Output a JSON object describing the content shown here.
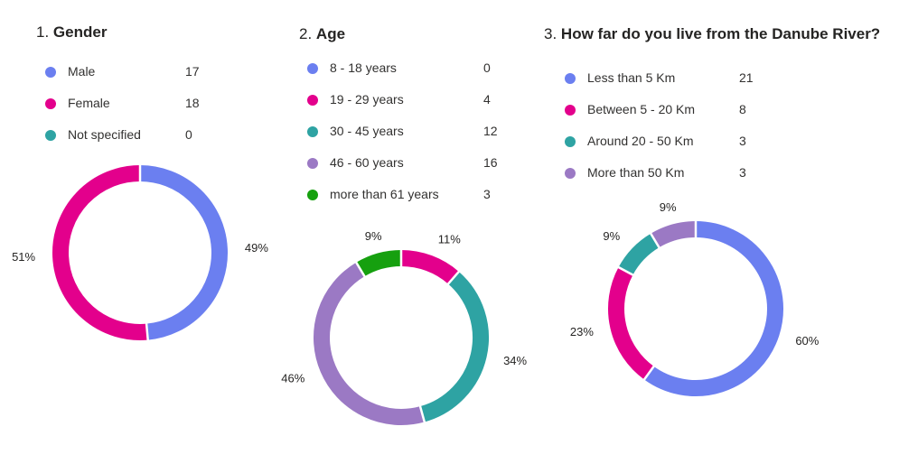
{
  "chart_data": [
    {
      "type": "pie",
      "number": "1.",
      "title": "Gender",
      "colors": {
        "Male": "#6b7ff0",
        "Female": "#e3008c",
        "Not specified": "#2ea3a3"
      },
      "categories": [
        "Male",
        "Female",
        "Not specified"
      ],
      "values": [
        17,
        18,
        0
      ],
      "percent_labels": [
        "49%",
        "51%",
        ""
      ]
    },
    {
      "type": "pie",
      "number": "2.",
      "title": "Age",
      "colors": {
        "8 - 18 years": "#6b7ff0",
        "19 - 29 years": "#e3008c",
        "30 - 45 years": "#2ea3a3",
        "46 - 60 years": "#9b79c4",
        "more than 61 years": "#16a00f"
      },
      "categories": [
        "8 - 18 years",
        "19 - 29 years",
        "30 - 45 years",
        "46 - 60 years",
        "more than 61 years"
      ],
      "values": [
        0,
        4,
        12,
        16,
        3
      ],
      "percent_labels": [
        "",
        "11%",
        "34%",
        "46%",
        "9%"
      ]
    },
    {
      "type": "pie",
      "number": "3.",
      "title": "How far do you live from the Danube River?",
      "colors": {
        "Less than 5 Km": "#6b7ff0",
        "Between 5 - 20 Km": "#e3008c",
        "Around 20 - 50 Km": "#2ea3a3",
        "More than 50 Km": "#9b79c4"
      },
      "categories": [
        "Less than 5 Km",
        "Between 5 - 20 Km",
        "Around 20 - 50 Km",
        "More than 50 Km"
      ],
      "values": [
        21,
        8,
        3,
        3
      ],
      "percent_labels": [
        "60%",
        "23%",
        "9%",
        "9%"
      ]
    }
  ]
}
